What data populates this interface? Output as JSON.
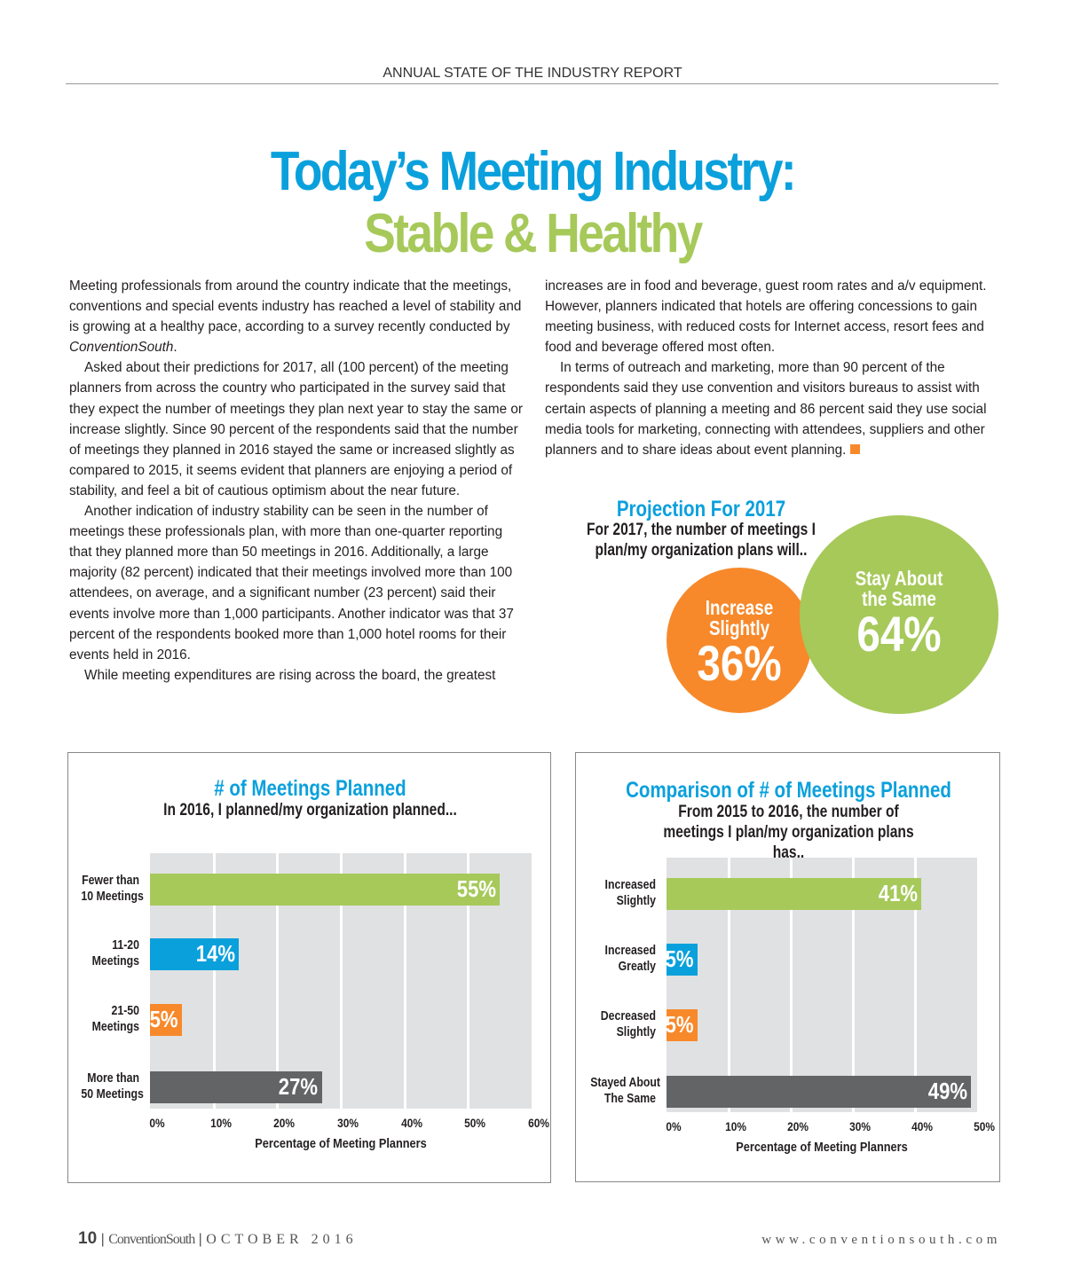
{
  "header": {
    "running_head": "ANNUAL STATE OF THE INDUSTRY REPORT"
  },
  "title": {
    "line1": "Today’s Meeting Industry:",
    "line2": "Stable & Healthy"
  },
  "article": {
    "left": [
      {
        "before": "Meeting professionals from around the country indicate that the meetings, conventions and special events industry has reached a level of stability and is growing at a healthy pace, according to a survey recently conducted by ",
        "italic": "ConventionSouth",
        "after": "."
      },
      {
        "text": "Asked about their predictions for 2017, all (100 percent) of the meeting planners from across the country who participated in the survey said that they expect the number of meetings they plan next year to stay the same or increase slightly. Since 90 percent of the respondents said that the number of meetings they planned in 2016 stayed the same or increased slightly as compared to 2015, it seems evident that planners are enjoying a period of stability, and feel a bit of cautious optimism about the near future."
      },
      {
        "text": "Another indication of industry stability can be seen in the number of meetings these professionals plan, with more than one-quarter reporting that they planned more than 50 meetings in 2016. Additionally, a large majority (82 percent) indicated that their meetings involved more than 100 attendees, on average, and a significant number (23 percent) said their events involve more than 1,000 participants. Another indicator was that 37 percent of the respondents booked more than 1,000 hotel rooms for their events held in 2016."
      },
      {
        "text": "While meeting expenditures are rising across the board, the greatest"
      }
    ],
    "right": [
      {
        "text": "increases are in food and beverage, guest room rates and a/v equipment. However, planners indicated that hotels are offering concessions to gain meeting business, with reduced costs for Internet access, resort fees and food and beverage offered most often."
      },
      {
        "text": "In terms of outreach and marketing, more than 90 percent of the respondents said they use convention and visitors bureaus to assist with certain aspects of planning a meeting and 86 percent said they use social media tools for marketing, connecting with attendees, suppliers and other planners and to share ideas about event planning."
      }
    ]
  },
  "chart_data": [
    {
      "type": "bubble",
      "title": "Projection For 2017",
      "subtitle": "For 2017, the number of meetings I plan/my organization plans will..",
      "categories": [
        "Increase Slightly",
        "Stay About the Same"
      ],
      "values": [
        36,
        64
      ],
      "labels": [
        "36%",
        "64%"
      ],
      "colors": [
        "#f7892b",
        "#a6c95a"
      ]
    },
    {
      "type": "bar",
      "orientation": "horizontal",
      "title": "# of Meetings Planned",
      "subtitle": "In 2016, I planned/my organization planned...",
      "categories": [
        "Fewer than 10 Meetings",
        "11-20 Meetings",
        "21-50 Meetings",
        "More than 50 Meetings"
      ],
      "values": [
        55,
        14,
        5,
        27
      ],
      "labels": [
        "55%",
        "14%",
        "5%",
        "27%"
      ],
      "colors": [
        "#a6c95a",
        "#0aa0dc",
        "#f7892b",
        "#636466"
      ],
      "xlabel": "Percentage of Meeting Planners",
      "xlim": [
        0,
        60
      ],
      "xticks": [
        "0%",
        "10%",
        "20%",
        "30%",
        "40%",
        "50%",
        "60%"
      ],
      "grid": true
    },
    {
      "type": "bar",
      "orientation": "horizontal",
      "title": "Comparison of # of Meetings Planned",
      "subtitle": "From 2015 to 2016, the number of meetings I plan/my organization plans has..",
      "categories": [
        "Increased Slightly",
        "Increased Greatly",
        "Decreased Slightly",
        "Stayed About The Same"
      ],
      "values": [
        41,
        5,
        5,
        49
      ],
      "labels": [
        "41%",
        "5%",
        "5%",
        "49%"
      ],
      "colors": [
        "#a6c95a",
        "#0aa0dc",
        "#f7892b",
        "#636466"
      ],
      "xlabel": "Percentage of Meeting Planners",
      "xlim": [
        0,
        50
      ],
      "xticks": [
        "0%",
        "10%",
        "20%",
        "30%",
        "40%",
        "50%"
      ],
      "grid": true
    }
  ],
  "footer": {
    "page": "10",
    "magazine": "ConventionSouth",
    "date": "OCTOBER 2016",
    "separator": "|",
    "url": "www.conventionsouth.com"
  }
}
